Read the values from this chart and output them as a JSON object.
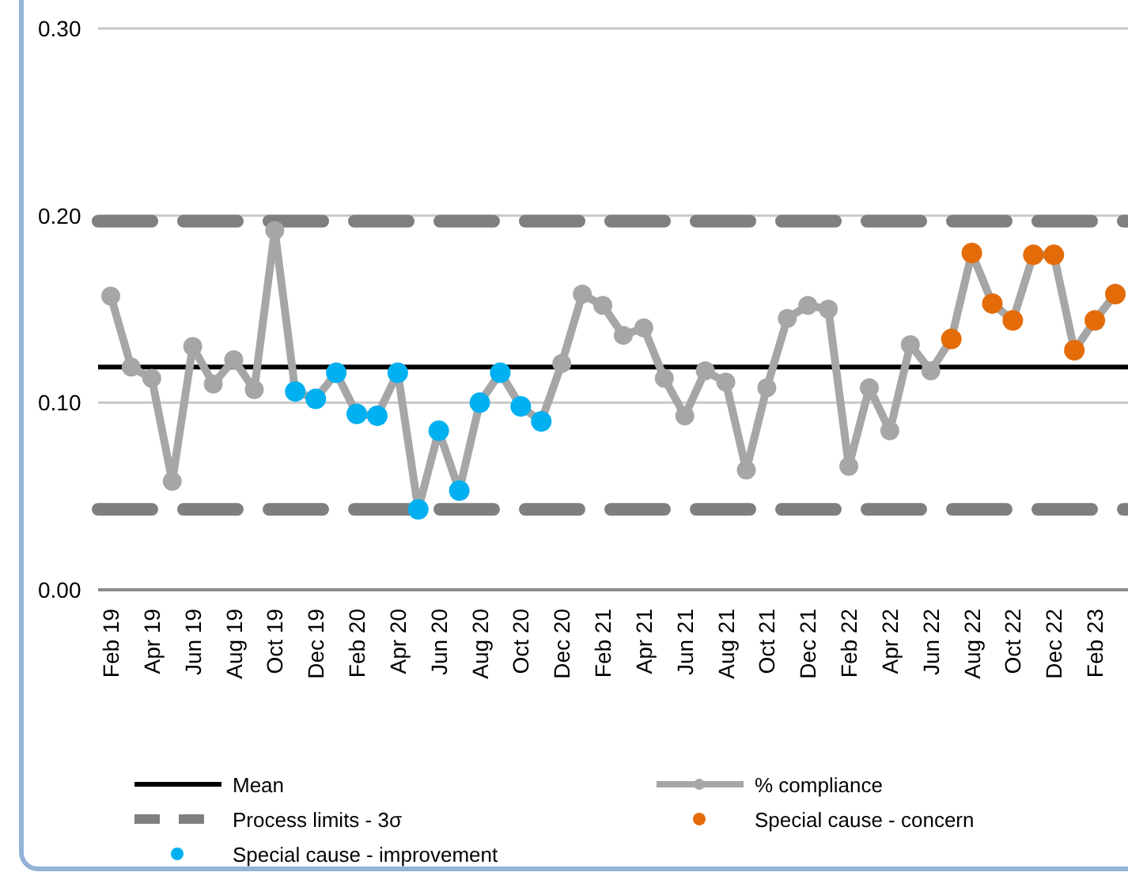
{
  "chart_data": {
    "type": "line",
    "categories": [
      "Feb 19",
      null,
      "Apr 19",
      null,
      "Jun 19",
      null,
      "Aug 19",
      null,
      "Oct 19",
      null,
      "Dec 19",
      null,
      "Feb 20",
      null,
      "Apr 20",
      null,
      "Jun 20",
      null,
      "Aug 20",
      null,
      "Oct 20",
      null,
      "Dec 20",
      null,
      "Feb 21",
      null,
      "Apr 21",
      null,
      "Jun 21",
      null,
      "Aug 21",
      null,
      "Oct 21",
      null,
      "Dec 21",
      null,
      "Feb 22",
      null,
      "Apr 22",
      null,
      "Jun 22",
      null,
      "Aug 22",
      null,
      "Oct 22",
      null,
      "Dec 22",
      null,
      "Feb 23",
      null
    ],
    "series": [
      {
        "name": "% compliance",
        "color": "#a6a6a6",
        "marker": "circle",
        "values": [
          0.157,
          0.119,
          0.113,
          0.058,
          0.13,
          0.11,
          0.123,
          0.107,
          0.192,
          0.106,
          0.102,
          0.116,
          0.094,
          0.093,
          0.116,
          0.043,
          0.085,
          0.053,
          0.1,
          0.116,
          0.098,
          0.09,
          0.121,
          0.158,
          0.152,
          0.136,
          0.14,
          0.113,
          0.093,
          0.117,
          0.111,
          0.064,
          0.108,
          0.145,
          0.152,
          0.15,
          0.066,
          0.108,
          0.085,
          0.131,
          0.117,
          0.134,
          0.18,
          0.153,
          0.144,
          0.179,
          0.179,
          0.128,
          0.144,
          0.158
        ]
      },
      {
        "name": "Special cause - concern",
        "type": "scatter",
        "color": "#e36c09",
        "marker": "circle",
        "values": [
          null,
          null,
          null,
          null,
          null,
          null,
          null,
          null,
          null,
          null,
          null,
          null,
          null,
          null,
          null,
          null,
          null,
          null,
          null,
          null,
          null,
          null,
          null,
          null,
          null,
          null,
          null,
          null,
          null,
          null,
          null,
          null,
          null,
          null,
          null,
          null,
          null,
          null,
          null,
          null,
          null,
          0.134,
          0.18,
          0.153,
          0.144,
          0.179,
          0.179,
          0.128,
          0.144,
          0.158
        ]
      },
      {
        "name": "Special cause  - improvement",
        "type": "scatter",
        "color": "#00b0f0",
        "marker": "circle",
        "values": [
          null,
          null,
          null,
          null,
          null,
          null,
          null,
          null,
          null,
          0.106,
          0.102,
          0.116,
          0.094,
          0.093,
          0.116,
          0.043,
          0.085,
          0.053,
          0.1,
          0.116,
          0.098,
          0.09,
          null,
          null,
          null,
          null,
          null,
          null,
          null,
          null,
          null,
          null,
          null,
          null,
          null,
          null,
          null,
          null,
          null,
          null,
          null,
          null,
          null,
          null,
          null,
          null,
          null,
          null,
          null,
          null
        ]
      }
    ],
    "ref_lines": [
      {
        "axis": "y",
        "value": 0.119,
        "label": "Mean",
        "color": "#000000",
        "line_style": "solid"
      },
      {
        "axis": "y",
        "value": 0.197,
        "label": "Process limits - 3σ",
        "color": "#7f7f7f",
        "line_style": "dashed"
      },
      {
        "axis": "y",
        "value": 0.043,
        "label": null,
        "color": "#7f7f7f",
        "line_style": "dashed"
      }
    ],
    "ylim": [
      0,
      0.3
    ],
    "yticks": [
      {
        "value": 0,
        "label": "0.00"
      },
      {
        "value": 0.1,
        "label": "0.10"
      },
      {
        "value": 0.2,
        "label": "0.20"
      },
      {
        "value": 0.3,
        "label": "0.30"
      }
    ],
    "grid": "y",
    "legend": "bottom"
  }
}
